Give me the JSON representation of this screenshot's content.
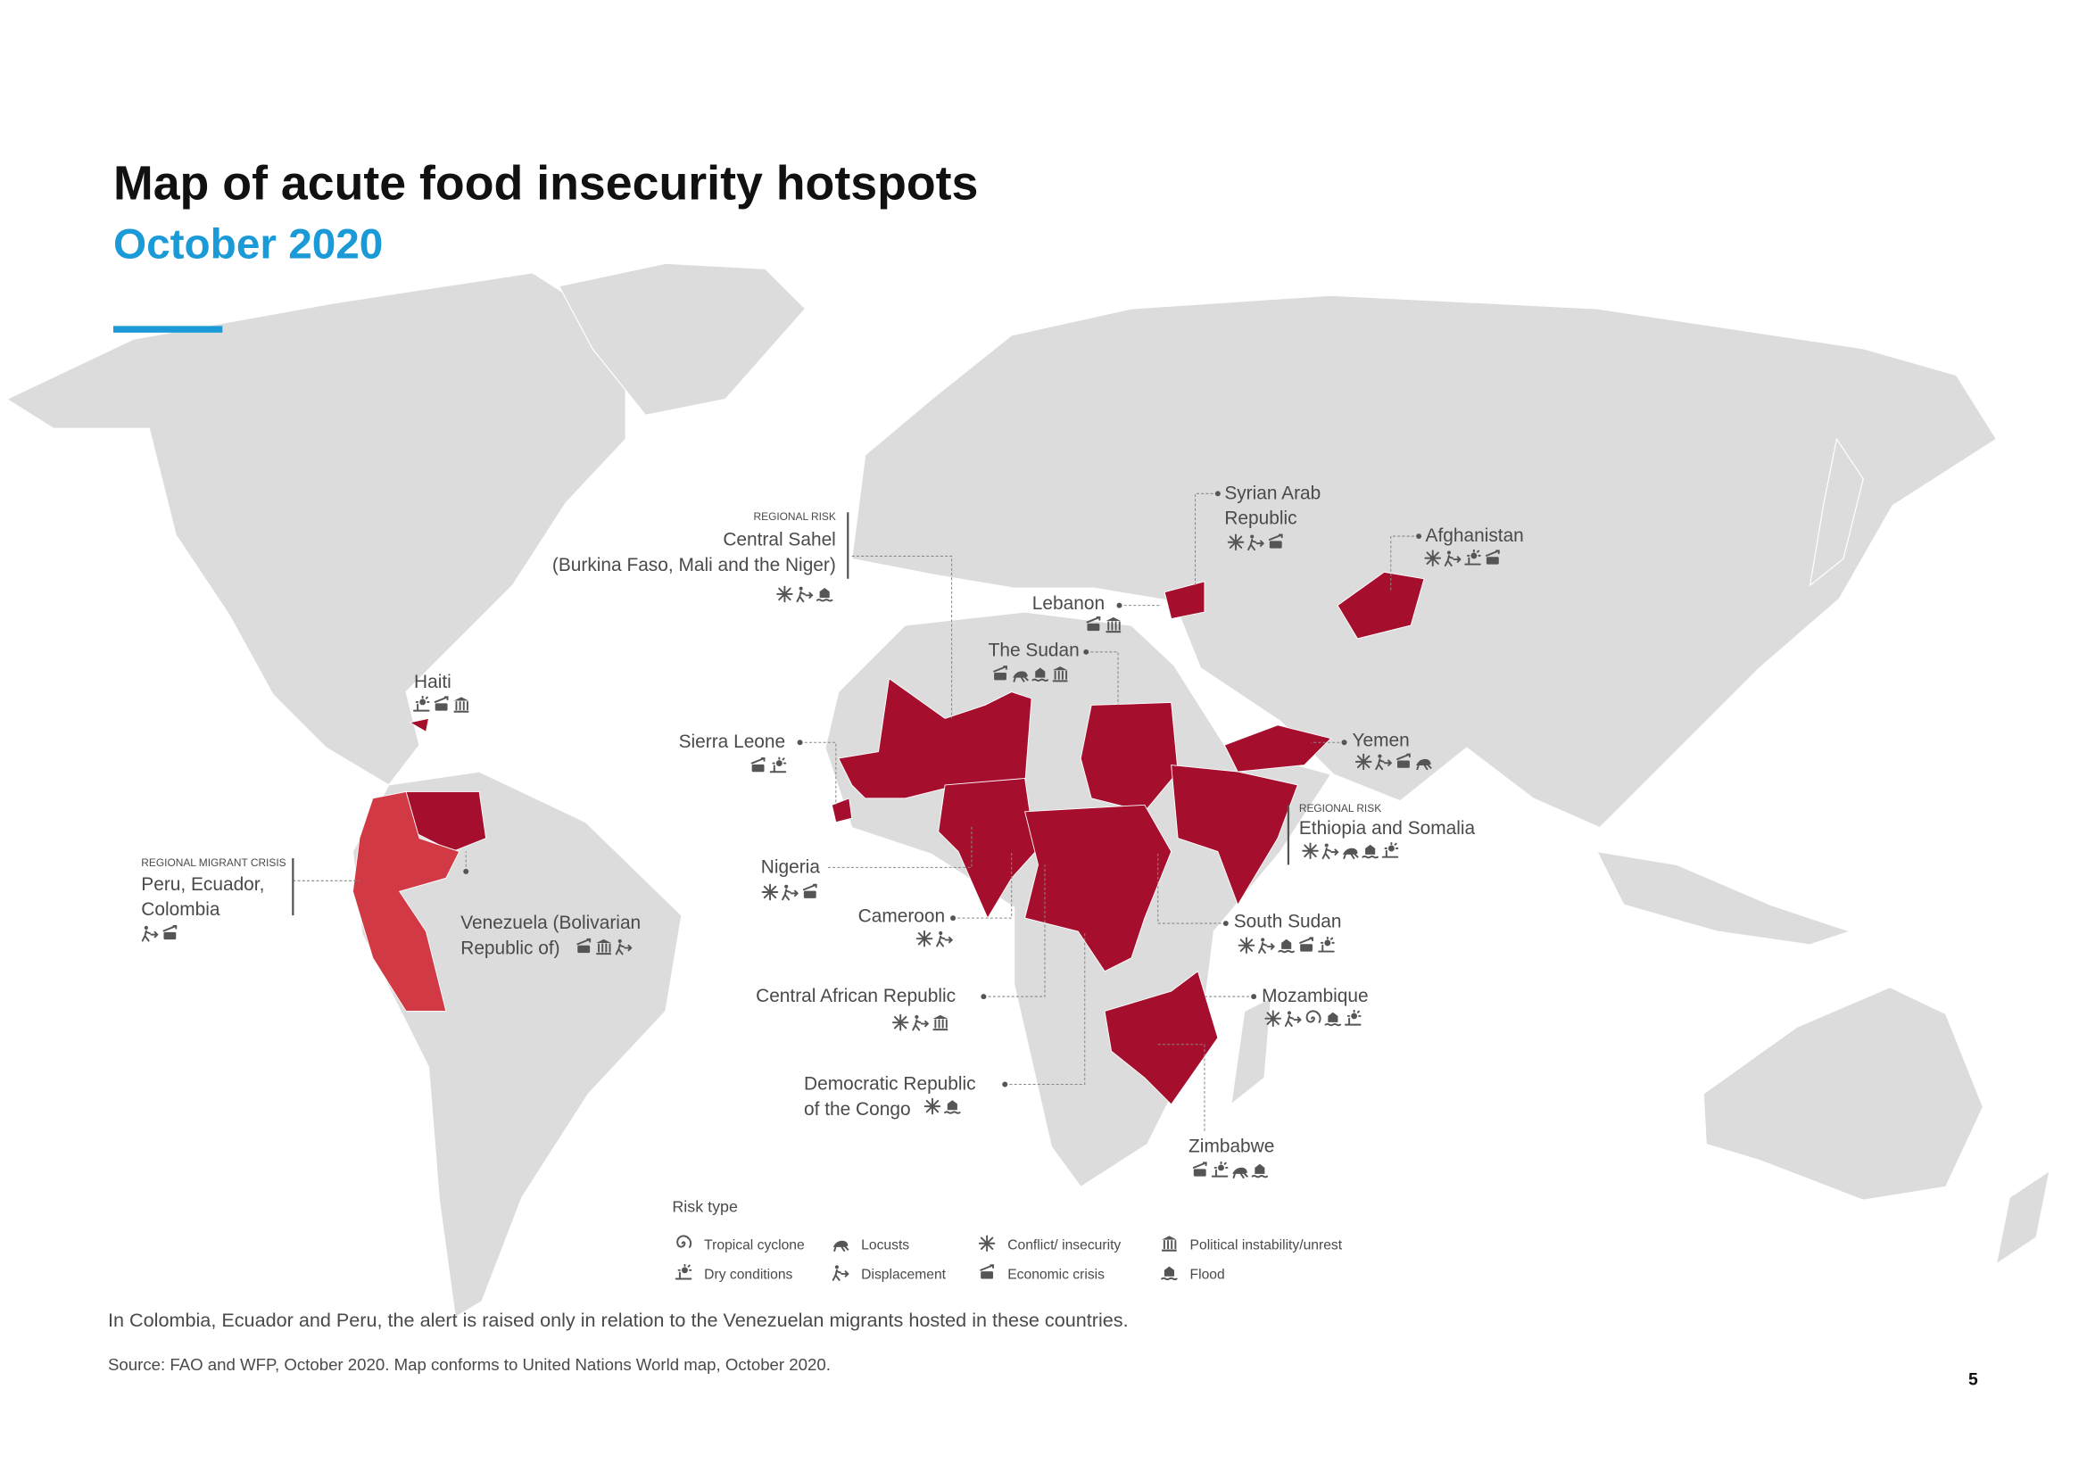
{
  "title": "Map of acute food insecurity hotspots",
  "subtitle": "October 2020",
  "labels": [
    {
      "lines": [
        "Syrian Arab",
        "Republic"
      ]
    },
    {
      "lines": [
        "Afghanistan"
      ]
    },
    {
      "lines": [
        "Lebanon"
      ]
    },
    {
      "tag": "REGIONAL RISK",
      "lines": [
        "Central Sahel",
        "(Burkina Faso, Mali and the Niger)"
      ]
    },
    {
      "lines": [
        "The Sudan"
      ]
    },
    {
      "lines": [
        "Haiti"
      ]
    },
    {
      "lines": [
        "Sierra Leone"
      ]
    },
    {
      "lines": [
        "Yemen"
      ]
    },
    {
      "tag": "REGIONAL RISK",
      "lines": [
        "Ethiopia and Somalia"
      ]
    },
    {
      "tag": "REGIONAL MIGRANT CRISIS",
      "lines": [
        "Peru, Ecuador,",
        "Colombia"
      ]
    },
    {
      "lines": [
        "Venezuela (Bolivarian",
        "Republic of)"
      ]
    },
    {
      "lines": [
        "Nigeria"
      ]
    },
    {
      "lines": [
        "Cameroon"
      ]
    },
    {
      "lines": [
        "South Sudan"
      ]
    },
    {
      "lines": [
        "Central African Republic"
      ]
    },
    {
      "lines": [
        "Mozambique"
      ]
    },
    {
      "lines": [
        "Democratic Republic",
        "of the Congo"
      ]
    },
    {
      "lines": [
        "Zimbabwe"
      ]
    }
  ],
  "legend": {
    "title": "Risk type",
    "items": [
      "Tropical cyclone",
      "Dry conditions",
      "Locusts",
      "Displacement",
      "Conflict/ insecurity",
      "Economic crisis",
      "Political instability/unrest",
      "Flood"
    ]
  },
  "footnote": "In Colombia, Ecuador and Peru, the alert is raised only in relation to the Venezuelan migrants hosted in these countries.",
  "source": "Source: FAO and WFP, October 2020. Map conforms to United Nations World map, October 2020.",
  "page_number": "5"
}
